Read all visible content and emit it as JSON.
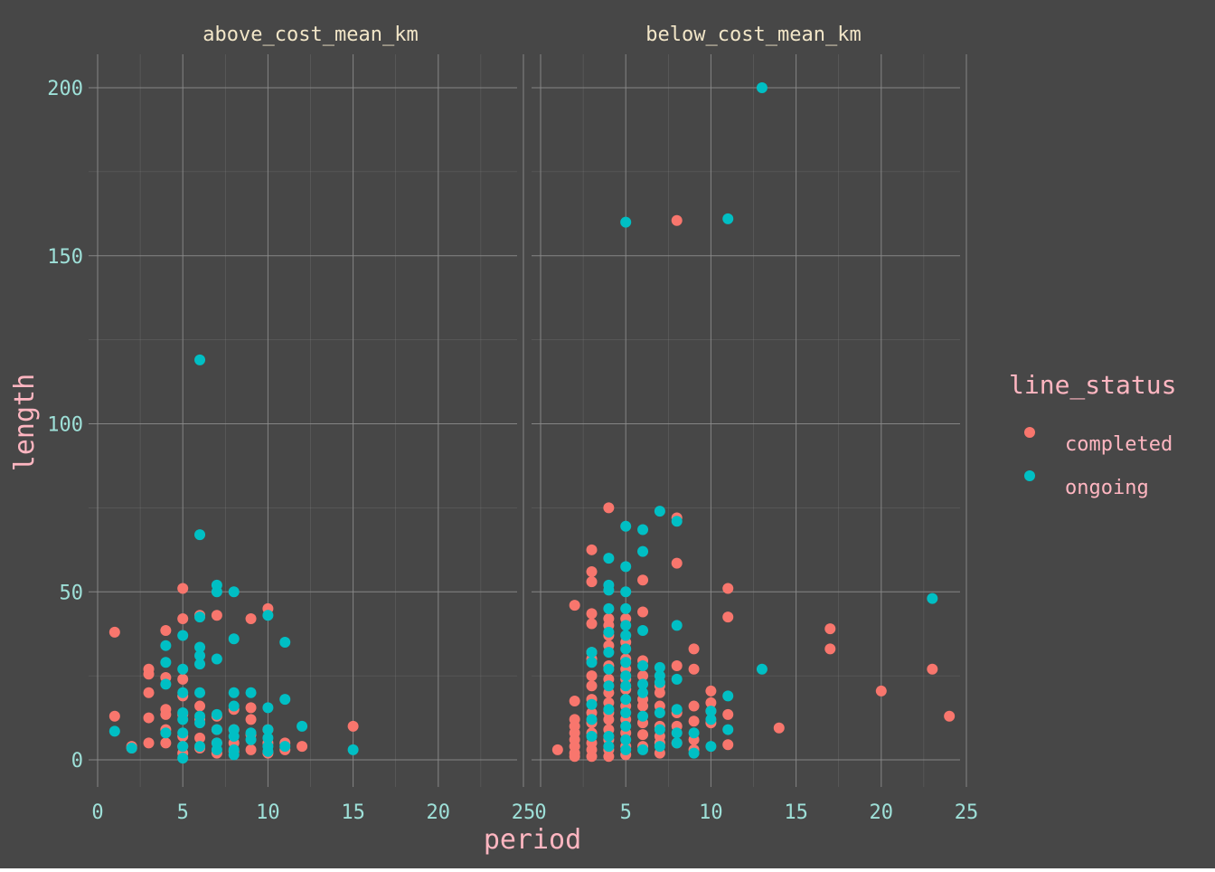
{
  "colors": {
    "background": "#474747",
    "grid": "#8c8c8c",
    "strip_text": "#f2e6c8",
    "axis_tick_text": "#9ee0d8",
    "axis_title": "#ffb6c1",
    "legend_text": "#ffb6c1",
    "completed": "#f8766d",
    "ongoing": "#00bfc4"
  },
  "chart_data": {
    "type": "scatter",
    "title": "",
    "xlabel": "period",
    "ylabel": "length",
    "facets": [
      "above_cost_mean_km",
      "below_cost_mean_km"
    ],
    "xlim": [
      0,
      25
    ],
    "ylim": [
      0,
      200
    ],
    "x_ticks": [
      0,
      5,
      10,
      15,
      20,
      25
    ],
    "y_ticks": [
      0,
      50,
      100,
      150,
      200
    ],
    "grid": true,
    "legend": {
      "title": "line_status",
      "position": "right",
      "entries": [
        "completed",
        "ongoing"
      ]
    },
    "series": [
      {
        "facet": "above_cost_mean_km",
        "name": "completed",
        "points": [
          [
            1,
            38
          ],
          [
            1,
            13
          ],
          [
            2,
            4
          ],
          [
            2,
            3.5
          ],
          [
            3,
            27
          ],
          [
            3,
            25.5
          ],
          [
            3,
            20
          ],
          [
            3,
            12.5
          ],
          [
            3,
            5
          ],
          [
            4,
            38.5
          ],
          [
            4,
            24.5
          ],
          [
            4,
            15
          ],
          [
            4,
            13.5
          ],
          [
            4,
            9
          ],
          [
            4,
            5
          ],
          [
            5,
            51
          ],
          [
            5,
            42
          ],
          [
            5,
            24
          ],
          [
            5,
            19
          ],
          [
            5,
            13.5
          ],
          [
            5,
            7
          ],
          [
            5,
            4
          ],
          [
            5,
            2
          ],
          [
            6,
            43
          ],
          [
            6,
            16
          ],
          [
            6,
            12
          ],
          [
            6,
            6.5
          ],
          [
            6,
            3.5
          ],
          [
            7,
            43
          ],
          [
            7,
            13
          ],
          [
            7,
            9
          ],
          [
            7,
            5
          ],
          [
            7,
            2
          ],
          [
            8,
            15
          ],
          [
            8,
            9
          ],
          [
            8,
            5
          ],
          [
            8,
            2.5
          ],
          [
            9,
            42
          ],
          [
            9,
            15.5
          ],
          [
            9,
            12
          ],
          [
            9,
            7.5
          ],
          [
            9,
            3
          ],
          [
            10,
            45
          ],
          [
            10,
            9
          ],
          [
            10,
            5
          ],
          [
            10,
            2
          ],
          [
            11,
            5
          ],
          [
            11,
            3
          ],
          [
            12,
            4
          ],
          [
            15,
            10
          ]
        ]
      },
      {
        "facet": "above_cost_mean_km",
        "name": "ongoing",
        "points": [
          [
            1,
            8.5
          ],
          [
            2,
            3.5
          ],
          [
            4,
            34
          ],
          [
            4,
            29
          ],
          [
            4,
            22.5
          ],
          [
            4,
            8
          ],
          [
            5,
            37
          ],
          [
            5,
            27
          ],
          [
            5,
            20
          ],
          [
            5,
            14
          ],
          [
            5,
            12
          ],
          [
            5,
            8
          ],
          [
            5,
            4
          ],
          [
            5,
            0.5
          ],
          [
            6,
            119
          ],
          [
            6,
            67
          ],
          [
            6,
            42.5
          ],
          [
            6,
            33.5
          ],
          [
            6,
            31
          ],
          [
            6,
            28.5
          ],
          [
            6,
            20
          ],
          [
            6,
            13
          ],
          [
            6,
            11
          ],
          [
            6,
            4
          ],
          [
            7,
            52
          ],
          [
            7,
            50
          ],
          [
            7,
            30
          ],
          [
            7,
            13.5
          ],
          [
            7,
            9
          ],
          [
            7,
            5
          ],
          [
            7,
            3
          ],
          [
            8,
            50
          ],
          [
            8,
            36
          ],
          [
            8,
            20
          ],
          [
            8,
            16
          ],
          [
            8,
            9
          ],
          [
            8,
            7
          ],
          [
            8,
            3
          ],
          [
            8,
            1.5
          ],
          [
            9,
            20
          ],
          [
            9,
            8
          ],
          [
            9,
            6
          ],
          [
            10,
            43
          ],
          [
            10,
            15.5
          ],
          [
            10,
            9
          ],
          [
            10,
            6.5
          ],
          [
            10,
            4
          ],
          [
            10,
            2.5
          ],
          [
            11,
            35
          ],
          [
            11,
            18
          ],
          [
            11,
            4
          ],
          [
            12,
            10
          ],
          [
            15,
            3
          ]
        ]
      },
      {
        "facet": "below_cost_mean_km",
        "name": "completed",
        "points": [
          [
            1,
            3
          ],
          [
            2,
            46
          ],
          [
            2,
            17.5
          ],
          [
            2,
            12
          ],
          [
            2,
            10
          ],
          [
            2,
            8
          ],
          [
            2,
            6
          ],
          [
            2,
            4
          ],
          [
            2,
            2
          ],
          [
            2,
            1
          ],
          [
            3,
            62.5
          ],
          [
            3,
            56
          ],
          [
            3,
            53
          ],
          [
            3,
            43.5
          ],
          [
            3,
            40.5
          ],
          [
            3,
            32
          ],
          [
            3,
            30
          ],
          [
            3,
            25
          ],
          [
            3,
            22
          ],
          [
            3,
            18
          ],
          [
            3,
            14
          ],
          [
            3,
            11
          ],
          [
            3,
            8
          ],
          [
            3,
            5
          ],
          [
            3,
            3
          ],
          [
            3,
            1
          ],
          [
            4,
            75
          ],
          [
            4,
            42
          ],
          [
            4,
            40
          ],
          [
            4,
            37
          ],
          [
            4,
            34
          ],
          [
            4,
            28
          ],
          [
            4,
            24
          ],
          [
            4,
            20
          ],
          [
            4,
            17
          ],
          [
            4,
            14
          ],
          [
            4,
            12
          ],
          [
            4,
            9
          ],
          [
            4,
            6
          ],
          [
            4,
            3
          ],
          [
            4,
            1
          ],
          [
            5,
            42
          ],
          [
            5,
            35
          ],
          [
            5,
            30
          ],
          [
            5,
            27
          ],
          [
            5,
            24
          ],
          [
            5,
            21
          ],
          [
            5,
            16
          ],
          [
            5,
            12
          ],
          [
            5,
            8
          ],
          [
            5,
            4
          ],
          [
            5,
            1.5
          ],
          [
            6,
            53.5
          ],
          [
            6,
            44
          ],
          [
            6,
            29.5
          ],
          [
            6,
            25
          ],
          [
            6,
            18
          ],
          [
            6,
            16
          ],
          [
            6,
            11
          ],
          [
            6,
            7.5
          ],
          [
            6,
            4
          ],
          [
            7,
            22
          ],
          [
            7,
            20
          ],
          [
            7,
            16
          ],
          [
            7,
            10
          ],
          [
            7,
            7
          ],
          [
            7,
            5
          ],
          [
            7,
            2
          ],
          [
            8,
            160.5
          ],
          [
            8,
            72
          ],
          [
            8,
            58.5
          ],
          [
            8,
            28
          ],
          [
            8,
            14
          ],
          [
            8,
            10
          ],
          [
            8,
            5
          ],
          [
            9,
            33
          ],
          [
            9,
            27
          ],
          [
            9,
            16
          ],
          [
            9,
            11.5
          ],
          [
            9,
            6
          ],
          [
            9,
            3
          ],
          [
            10,
            20.5
          ],
          [
            10,
            17
          ],
          [
            10,
            14.5
          ],
          [
            10,
            11
          ],
          [
            11,
            51
          ],
          [
            11,
            42.5
          ],
          [
            11,
            13.5
          ],
          [
            11,
            4.5
          ],
          [
            14,
            9.5
          ],
          [
            17,
            39
          ],
          [
            17,
            33
          ],
          [
            20,
            20.5
          ],
          [
            23,
            27
          ],
          [
            24,
            13
          ]
        ]
      },
      {
        "facet": "below_cost_mean_km",
        "name": "ongoing",
        "points": [
          [
            3,
            32
          ],
          [
            3,
            29
          ],
          [
            3,
            16.5
          ],
          [
            3,
            12
          ],
          [
            3,
            7
          ],
          [
            4,
            60
          ],
          [
            4,
            52
          ],
          [
            4,
            50.5
          ],
          [
            4,
            45
          ],
          [
            4,
            38
          ],
          [
            4,
            32
          ],
          [
            4,
            27
          ],
          [
            4,
            22
          ],
          [
            4,
            15
          ],
          [
            4,
            7
          ],
          [
            4,
            4
          ],
          [
            5,
            160
          ],
          [
            5,
            69.5
          ],
          [
            5,
            57.5
          ],
          [
            5,
            50
          ],
          [
            5,
            45
          ],
          [
            5,
            40
          ],
          [
            5,
            37
          ],
          [
            5,
            33
          ],
          [
            5,
            29
          ],
          [
            5,
            25
          ],
          [
            5,
            22
          ],
          [
            5,
            18
          ],
          [
            5,
            14
          ],
          [
            5,
            10
          ],
          [
            5,
            6
          ],
          [
            5,
            3
          ],
          [
            6,
            68.5
          ],
          [
            6,
            62
          ],
          [
            6,
            38.5
          ],
          [
            6,
            28
          ],
          [
            6,
            22.5
          ],
          [
            6,
            20
          ],
          [
            6,
            13
          ],
          [
            6,
            3
          ],
          [
            7,
            74
          ],
          [
            7,
            27.5
          ],
          [
            7,
            25
          ],
          [
            7,
            23
          ],
          [
            7,
            14
          ],
          [
            7,
            9
          ],
          [
            7,
            4
          ],
          [
            8,
            71
          ],
          [
            8,
            40
          ],
          [
            8,
            24
          ],
          [
            8,
            15
          ],
          [
            8,
            8
          ],
          [
            8,
            5
          ],
          [
            9,
            8
          ],
          [
            9,
            2
          ],
          [
            10,
            14.5
          ],
          [
            10,
            12
          ],
          [
            10,
            4
          ],
          [
            11,
            161
          ],
          [
            11,
            19
          ],
          [
            11,
            9
          ],
          [
            13,
            200
          ],
          [
            13,
            27
          ],
          [
            23,
            48
          ]
        ]
      }
    ]
  }
}
